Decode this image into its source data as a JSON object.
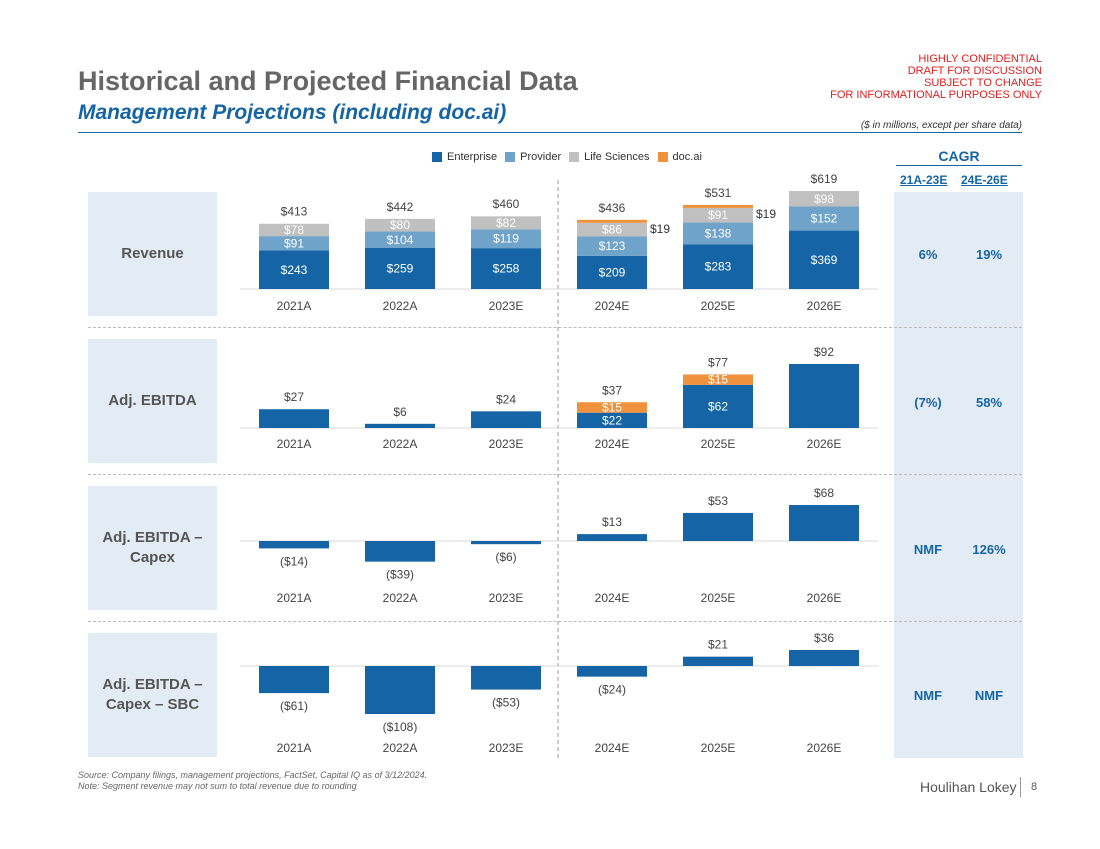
{
  "header": {
    "title": "Historical and Projected Financial Data",
    "subtitle": "Management Projections (including doc.ai)",
    "confidential": [
      "HIGHLY CONFIDENTIAL",
      "DRAFT FOR DISCUSSION",
      "SUBJECT TO CHANGE",
      "FOR INFORMATIONAL PURPOSES ONLY"
    ],
    "units_note": "($ in millions, except per share data)"
  },
  "legend": [
    {
      "label": "Enterprise",
      "color": "#1565a6"
    },
    {
      "label": "Provider",
      "color": "#6fa3c9"
    },
    {
      "label": "Life Sciences",
      "color": "#c0c0c0"
    },
    {
      "label": "doc.ai",
      "color": "#f0913e"
    }
  ],
  "cagr": {
    "title": "CAGR",
    "col1": "21A-23E",
    "col2": "24E-26E",
    "rows": [
      {
        "a": "6%",
        "b": "19%"
      },
      {
        "a": "(7%)",
        "b": "58%"
      },
      {
        "a": "NMF",
        "b": "126%"
      },
      {
        "a": "NMF",
        "b": "NMF"
      }
    ]
  },
  "panels": [
    {
      "label_lines": [
        "Revenue"
      ]
    },
    {
      "label_lines": [
        "Adj. EBITDA"
      ]
    },
    {
      "label_lines": [
        "Adj. EBITDA –",
        "Capex"
      ]
    },
    {
      "label_lines": [
        "Adj. EBITDA –",
        "Capex – SBC"
      ]
    }
  ],
  "chart_data": [
    {
      "type": "bar",
      "stacked": true,
      "title": "Revenue",
      "categories": [
        "2021A",
        "2022A",
        "2023E",
        "2024E",
        "2025E",
        "2026E"
      ],
      "series": [
        {
          "name": "Enterprise",
          "values": [
            243,
            259,
            258,
            209,
            283,
            369
          ],
          "labels": [
            "$243",
            "$259",
            "$258",
            "$209",
            "$283",
            "$369"
          ]
        },
        {
          "name": "Provider",
          "values": [
            91,
            104,
            119,
            123,
            138,
            152
          ],
          "labels": [
            "$91",
            "$104",
            "$119",
            "$123",
            "$138",
            "$152"
          ]
        },
        {
          "name": "Life Sciences",
          "values": [
            78,
            80,
            82,
            86,
            91,
            98
          ],
          "labels": [
            "$78",
            "$80",
            "$82",
            "$86",
            "$91",
            "$98"
          ]
        },
        {
          "name": "doc.ai",
          "values": [
            0,
            0,
            0,
            19,
            19,
            0
          ],
          "labels": [
            "",
            "",
            "",
            "$19",
            "$19",
            ""
          ]
        }
      ],
      "totals": [
        413,
        442,
        460,
        436,
        531,
        619
      ],
      "total_labels": [
        "$413",
        "$442",
        "$460",
        "$436",
        "$531",
        "$619"
      ],
      "ylim": [
        0,
        640
      ]
    },
    {
      "type": "bar",
      "stacked": true,
      "title": "Adj. EBITDA",
      "categories": [
        "2021A",
        "2022A",
        "2023E",
        "2024E",
        "2025E",
        "2026E"
      ],
      "series": [
        {
          "name": "Enterprise",
          "values": [
            27,
            6,
            24,
            22,
            62,
            92
          ],
          "labels": [
            "",
            "",
            "",
            "$22",
            "$62",
            ""
          ]
        },
        {
          "name": "doc.ai",
          "values": [
            0,
            0,
            0,
            15,
            15,
            0
          ],
          "labels": [
            "",
            "",
            "",
            "$15",
            "$15",
            ""
          ]
        }
      ],
      "totals": [
        27,
        6,
        24,
        37,
        77,
        92
      ],
      "total_labels": [
        "$27",
        "$6",
        "$24",
        "$37",
        "$77",
        "$92"
      ],
      "ylim": [
        0,
        95
      ]
    },
    {
      "type": "bar",
      "title": "Adj. EBITDA – Capex",
      "categories": [
        "2021A",
        "2022A",
        "2023E",
        "2024E",
        "2025E",
        "2026E"
      ],
      "values": [
        -14,
        -39,
        -6,
        13,
        53,
        68
      ],
      "value_labels": [
        "($14)",
        "($39)",
        "($6)",
        "$13",
        "$53",
        "$68"
      ],
      "ylim": [
        -45,
        75
      ]
    },
    {
      "type": "bar",
      "title": "Adj. EBITDA – Capex – SBC",
      "categories": [
        "2021A",
        "2022A",
        "2023E",
        "2024E",
        "2025E",
        "2026E"
      ],
      "values": [
        -61,
        -108,
        -53,
        -24,
        21,
        36
      ],
      "value_labels": [
        "($61)",
        "($108)",
        "($53)",
        "($24)",
        "$21",
        "$36"
      ],
      "ylim": [
        -115,
        40
      ]
    }
  ],
  "footer": {
    "source": "Source: Company filings, management projections, FactSet, Capital IQ as of 3/12/2024.",
    "note": "Note: Segment revenue may not sum to total revenue due to rounding",
    "brand": "Houlihan Lokey",
    "page": "8"
  }
}
